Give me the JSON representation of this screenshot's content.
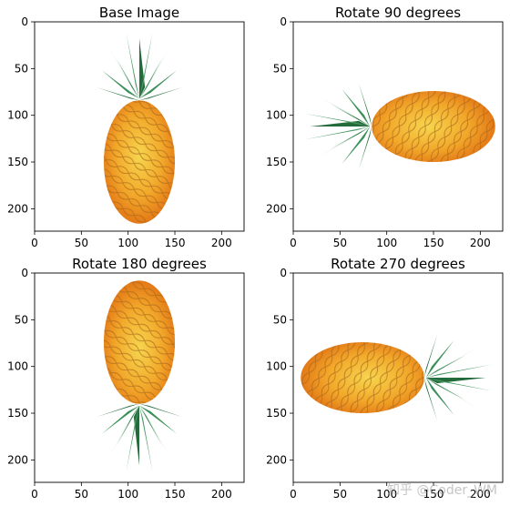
{
  "figure": {
    "watermark": "知乎 @Coder_WM"
  },
  "chart_data": [
    {
      "type": "image",
      "title": "Base Image",
      "rotation_degrees": 0,
      "xlim": [
        0,
        224
      ],
      "ylim": [
        224,
        0
      ],
      "xticks": [
        0,
        50,
        100,
        150,
        200
      ],
      "yticks": [
        0,
        50,
        100,
        150,
        200
      ],
      "image_content": "pineapple, crown at top"
    },
    {
      "type": "image",
      "title": "Rotate 90 degrees",
      "rotation_degrees": 90,
      "xlim": [
        0,
        224
      ],
      "ylim": [
        224,
        0
      ],
      "xticks": [
        0,
        50,
        100,
        150,
        200
      ],
      "yticks": [
        0,
        50,
        100,
        150,
        200
      ],
      "image_content": "pineapple, crown at left"
    },
    {
      "type": "image",
      "title": "Rotate 180 degrees",
      "rotation_degrees": 180,
      "xlim": [
        0,
        224
      ],
      "ylim": [
        224,
        0
      ],
      "xticks": [
        0,
        50,
        100,
        150,
        200
      ],
      "yticks": [
        0,
        50,
        100,
        150,
        200
      ],
      "image_content": "pineapple, crown at bottom"
    },
    {
      "type": "image",
      "title": "Rotate 270 degrees",
      "rotation_degrees": 270,
      "xlim": [
        0,
        224
      ],
      "ylim": [
        224,
        0
      ],
      "xticks": [
        0,
        50,
        100,
        150,
        200
      ],
      "yticks": [
        0,
        50,
        100,
        150,
        200
      ],
      "image_content": "pineapple, crown at right"
    }
  ]
}
